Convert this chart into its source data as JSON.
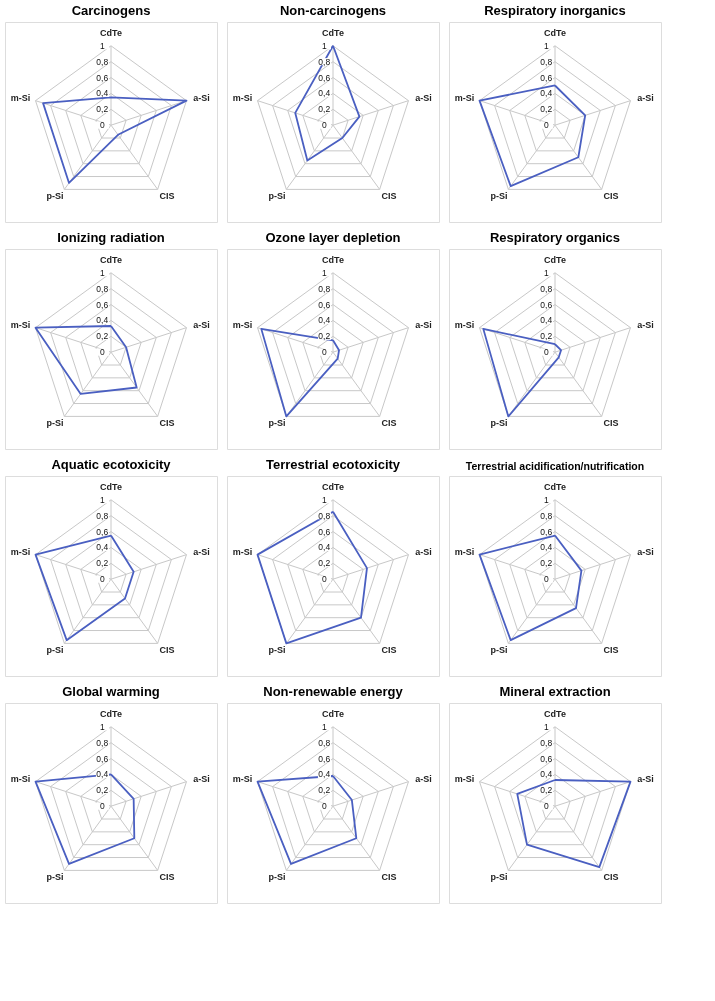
{
  "chart_data": [
    {
      "type": "radar",
      "title": "Carcinogens",
      "categories": [
        "CdTe",
        "a-Si",
        "CIS",
        "p-Si",
        "m-Si"
      ],
      "ylim": [
        0,
        1
      ],
      "yticks": [
        0,
        {
          "value": 0.2,
          "label": "0,2"
        },
        {
          "value": 0.4,
          "label": "0,4"
        },
        {
          "value": 0.6,
          "label": "0,6"
        },
        {
          "value": 0.8,
          "label": "0,8"
        },
        1
      ],
      "grid": true,
      "series": [
        {
          "color": "#4a5fc1",
          "values": [
            0.35,
            1,
            0.15,
            0.9,
            0.9
          ]
        }
      ]
    },
    {
      "type": "radar",
      "title": "Non-carcinogens",
      "categories": [
        "CdTe",
        "a-Si",
        "CIS",
        "p-Si",
        "m-Si"
      ],
      "ylim": [
        0,
        1
      ],
      "yticks": [
        0,
        {
          "value": 0.2,
          "label": "0,2"
        },
        {
          "value": 0.4,
          "label": "0,4"
        },
        {
          "value": 0.6,
          "label": "0,6"
        },
        {
          "value": 0.8,
          "label": "0,8"
        },
        1
      ],
      "grid": true,
      "series": [
        {
          "color": "#4a5fc1",
          "values": [
            1,
            0.35,
            0.2,
            0.55,
            0.5
          ]
        }
      ]
    },
    {
      "type": "radar",
      "title": "Respiratory inorganics",
      "categories": [
        "CdTe",
        "a-Si",
        "CIS",
        "p-Si",
        "m-Si"
      ],
      "ylim": [
        0,
        1
      ],
      "yticks": [
        0,
        {
          "value": 0.2,
          "label": "0,2"
        },
        {
          "value": 0.4,
          "label": "0,4"
        },
        {
          "value": 0.6,
          "label": "0,6"
        },
        {
          "value": 0.8,
          "label": "0,8"
        },
        1
      ],
      "grid": true,
      "series": [
        {
          "color": "#4a5fc1",
          "values": [
            0.5,
            0.4,
            0.5,
            0.95,
            1
          ]
        }
      ]
    },
    {
      "type": "radar",
      "title": "Ionizing radiation",
      "categories": [
        "CdTe",
        "a-Si",
        "CIS",
        "p-Si",
        "m-Si"
      ],
      "ylim": [
        0,
        1
      ],
      "yticks": [
        0,
        {
          "value": 0.2,
          "label": "0,2"
        },
        {
          "value": 0.4,
          "label": "0,4"
        },
        {
          "value": 0.6,
          "label": "0,6"
        },
        {
          "value": 0.8,
          "label": "0,8"
        },
        1
      ],
      "grid": true,
      "series": [
        {
          "color": "#4a5fc1",
          "values": [
            0.33,
            0.2,
            0.55,
            0.65,
            1
          ]
        }
      ]
    },
    {
      "type": "radar",
      "title": "Ozone layer depletion",
      "categories": [
        "CdTe",
        "a-Si",
        "CIS",
        "p-Si",
        "m-Si"
      ],
      "ylim": [
        0,
        1
      ],
      "yticks": [
        0,
        {
          "value": 0.2,
          "label": "0,2"
        },
        {
          "value": 0.4,
          "label": "0,4"
        },
        {
          "value": 0.6,
          "label": "0,6"
        },
        {
          "value": 0.8,
          "label": "0,8"
        },
        1
      ],
      "grid": true,
      "series": [
        {
          "color": "#4a5fc1",
          "values": [
            0.15,
            0.08,
            0.1,
            1,
            0.95
          ]
        }
      ]
    },
    {
      "type": "radar",
      "title": "Respiratory organics",
      "categories": [
        "CdTe",
        "a-Si",
        "CIS",
        "p-Si",
        "m-Si"
      ],
      "ylim": [
        0,
        1
      ],
      "yticks": [
        0,
        {
          "value": 0.2,
          "label": "0,2"
        },
        {
          "value": 0.4,
          "label": "0,4"
        },
        {
          "value": 0.6,
          "label": "0,6"
        },
        {
          "value": 0.8,
          "label": "0,8"
        },
        1
      ],
      "grid": true,
      "series": [
        {
          "color": "#4a5fc1",
          "values": [
            0.1,
            0.08,
            0.08,
            1,
            0.95
          ]
        }
      ]
    },
    {
      "type": "radar",
      "title": "Aquatic ecotoxicity",
      "categories": [
        "CdTe",
        "a-Si",
        "CIS",
        "p-Si",
        "m-Si"
      ],
      "ylim": [
        0,
        1
      ],
      "yticks": [
        0,
        {
          "value": 0.2,
          "label": "0,2"
        },
        {
          "value": 0.4,
          "label": "0,4"
        },
        {
          "value": 0.6,
          "label": "0,6"
        },
        {
          "value": 0.8,
          "label": "0,8"
        },
        1
      ],
      "grid": true,
      "series": [
        {
          "color": "#4a5fc1",
          "values": [
            0.55,
            0.3,
            0.3,
            0.95,
            1
          ]
        }
      ]
    },
    {
      "type": "radar",
      "title": "Terrestrial ecotoxicity",
      "categories": [
        "CdTe",
        "a-Si",
        "CIS",
        "p-Si",
        "m-Si"
      ],
      "ylim": [
        0,
        1
      ],
      "yticks": [
        0,
        {
          "value": 0.2,
          "label": "0,2"
        },
        {
          "value": 0.4,
          "label": "0,4"
        },
        {
          "value": 0.6,
          "label": "0,6"
        },
        {
          "value": 0.8,
          "label": "0,8"
        },
        1
      ],
      "grid": true,
      "series": [
        {
          "color": "#4a5fc1",
          "values": [
            0.85,
            0.45,
            0.6,
            1,
            1
          ]
        }
      ]
    },
    {
      "type": "radar",
      "title": "Terrestrial acidification/nutrification",
      "categories": [
        "CdTe",
        "a-Si",
        "CIS",
        "p-Si",
        "m-Si"
      ],
      "ylim": [
        0,
        1
      ],
      "yticks": [
        0,
        {
          "value": 0.2,
          "label": "0,2"
        },
        {
          "value": 0.4,
          "label": "0,4"
        },
        {
          "value": 0.6,
          "label": "0,6"
        },
        {
          "value": 0.8,
          "label": "0,8"
        },
        1
      ],
      "grid": true,
      "series": [
        {
          "color": "#4a5fc1",
          "values": [
            0.55,
            0.35,
            0.45,
            0.95,
            1
          ]
        }
      ]
    },
    {
      "type": "radar",
      "title": "Global warming",
      "categories": [
        "CdTe",
        "a-Si",
        "CIS",
        "p-Si",
        "m-Si"
      ],
      "ylim": [
        0,
        1
      ],
      "yticks": [
        0,
        {
          "value": 0.2,
          "label": "0,2"
        },
        {
          "value": 0.4,
          "label": "0,4"
        },
        {
          "value": 0.6,
          "label": "0,6"
        },
        {
          "value": 0.8,
          "label": "0,8"
        },
        1
      ],
      "grid": true,
      "series": [
        {
          "color": "#4a5fc1",
          "values": [
            0.4,
            0.3,
            0.5,
            0.9,
            1
          ]
        }
      ]
    },
    {
      "type": "radar",
      "title": "Non-renewable energy",
      "categories": [
        "CdTe",
        "a-Si",
        "CIS",
        "p-Si",
        "m-Si"
      ],
      "ylim": [
        0,
        1
      ],
      "yticks": [
        0,
        {
          "value": 0.2,
          "label": "0,2"
        },
        {
          "value": 0.4,
          "label": "0,4"
        },
        {
          "value": 0.6,
          "label": "0,6"
        },
        {
          "value": 0.8,
          "label": "0,8"
        },
        1
      ],
      "grid": true,
      "series": [
        {
          "color": "#4a5fc1",
          "values": [
            0.38,
            0.25,
            0.5,
            0.9,
            1
          ]
        }
      ]
    },
    {
      "type": "radar",
      "title": "Mineral extraction",
      "categories": [
        "CdTe",
        "a-Si",
        "CIS",
        "p-Si",
        "m-Si"
      ],
      "ylim": [
        0,
        1
      ],
      "yticks": [
        0,
        {
          "value": 0.2,
          "label": "0,2"
        },
        {
          "value": 0.4,
          "label": "0,4"
        },
        {
          "value": 0.6,
          "label": "0,6"
        },
        {
          "value": 0.8,
          "label": "0,8"
        },
        1
      ],
      "grid": true,
      "series": [
        {
          "color": "#4a5fc1",
          "values": [
            0.33,
            1,
            0.95,
            0.6,
            0.5
          ]
        }
      ]
    }
  ]
}
